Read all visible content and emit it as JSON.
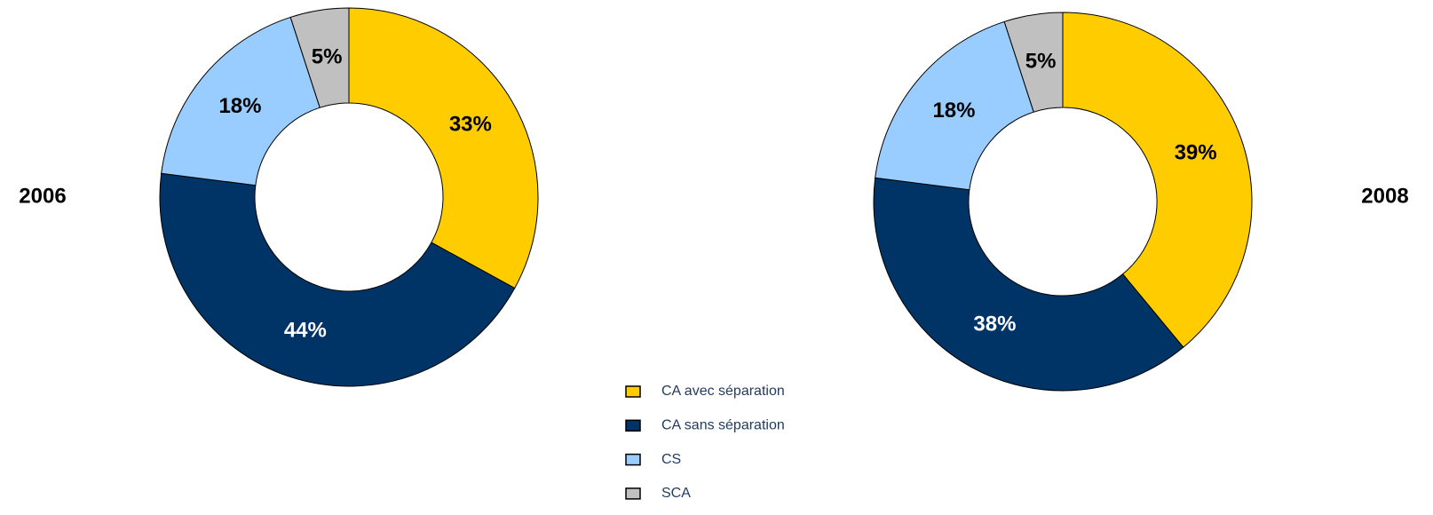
{
  "chart_data": [
    {
      "type": "donut",
      "title": "2006",
      "categories": [
        "CA avec séparation",
        "CA sans séparation",
        "CS",
        "SCA"
      ],
      "values": [
        33,
        44,
        18,
        5
      ],
      "value_labels": [
        "33%",
        "44%",
        "18%",
        "5%"
      ],
      "colors": [
        "#FFCC00",
        "#003366",
        "#99CCFF",
        "#C0C0C0"
      ]
    },
    {
      "type": "donut",
      "title": "2008",
      "categories": [
        "CA avec séparation",
        "CA sans séparation",
        "CS",
        "SCA"
      ],
      "values": [
        39,
        38,
        18,
        5
      ],
      "value_labels": [
        "39%",
        "38%",
        "18%",
        "5%"
      ],
      "colors": [
        "#FFCC00",
        "#003366",
        "#99CCFF",
        "#C0C0C0"
      ]
    }
  ]
}
